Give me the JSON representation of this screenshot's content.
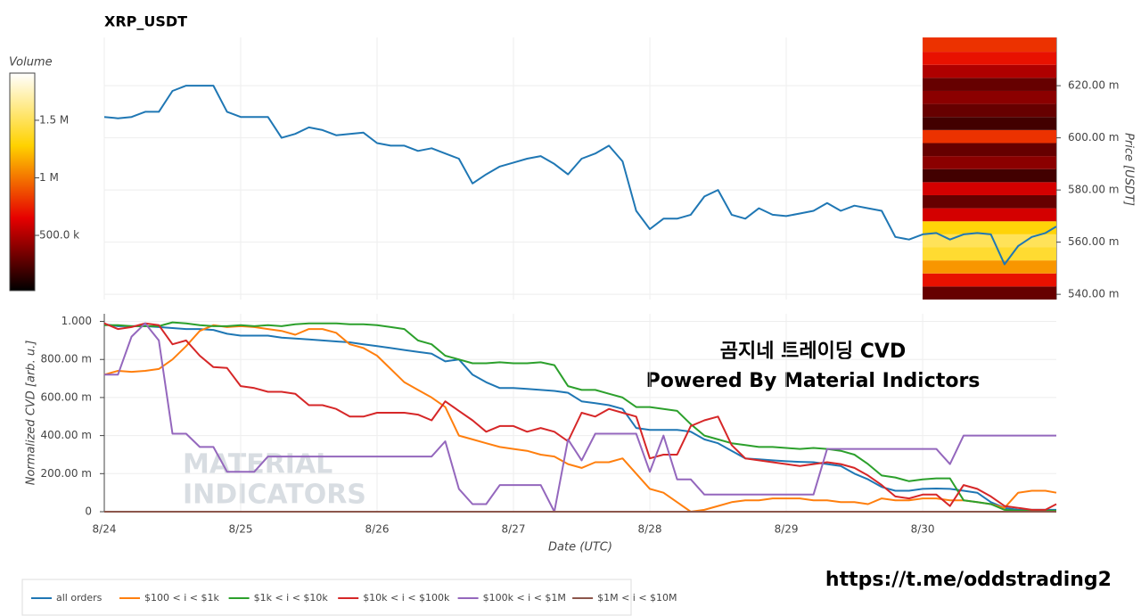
{
  "chart_data": {
    "type": "line",
    "title": "XRP_USDT",
    "xlabel": "Date (UTC)",
    "x": [
      24,
      24.1,
      24.2,
      24.3,
      24.4,
      24.5,
      24.6,
      24.7,
      24.8,
      24.9,
      25,
      25.1,
      25.2,
      25.3,
      25.4,
      25.5,
      25.6,
      25.7,
      25.8,
      25.9,
      26,
      26.1,
      26.2,
      26.3,
      26.4,
      26.5,
      26.6,
      26.7,
      26.8,
      26.9,
      27,
      27.1,
      27.2,
      27.3,
      27.4,
      27.5,
      27.6,
      27.7,
      27.8,
      27.9,
      28,
      28.1,
      28.2,
      28.3,
      28.4,
      28.5,
      28.6,
      28.7,
      28.8,
      28.9,
      29,
      29.1,
      29.2,
      29.3,
      29.4,
      29.5,
      29.6,
      29.7,
      29.8,
      29.9,
      30,
      30.1,
      30.2,
      30.3,
      30.4,
      30.5,
      30.6,
      30.7,
      30.8,
      30.9,
      30.98
    ],
    "xlim": [
      24,
      30.98
    ],
    "xticks": [
      {
        "value": 24,
        "label": "8/24"
      },
      {
        "value": 25,
        "label": "8/25"
      },
      {
        "value": 26,
        "label": "8/26"
      },
      {
        "value": 27,
        "label": "8/27"
      },
      {
        "value": 28,
        "label": "8/28"
      },
      {
        "value": 29,
        "label": "8/29"
      },
      {
        "value": 30,
        "label": "8/30"
      }
    ],
    "grid": true,
    "panels": [
      {
        "ylabel": "Price [USDT]",
        "ylim": [
          538,
          638.5
        ],
        "yticks": [
          {
            "value": 540,
            "label": "540.00 m"
          },
          {
            "value": 560,
            "label": "560.00 m"
          },
          {
            "value": 580,
            "label": "580.00 m"
          },
          {
            "value": 600,
            "label": "600.00 m"
          },
          {
            "value": 620,
            "label": "620.00 m"
          }
        ],
        "series": [
          {
            "color": "#1f77b4",
            "values": [
              608,
              607.5,
              608,
              610,
              610,
              618,
              620,
              620,
              620,
              610,
              608,
              608,
              608,
              600,
              601.5,
              604,
              603,
              601,
              601.5,
              602,
              598,
              597,
              597,
              595,
              596,
              594,
              592,
              582.5,
              586,
              589,
              590.5,
              592,
              593,
              590,
              586,
              592,
              594,
              597,
              591,
              572,
              565,
              569,
              569,
              570.5,
              577.5,
              580,
              570.5,
              569,
              573,
              570.5,
              570,
              571,
              572,
              575,
              572,
              574,
              573,
              572,
              562,
              561,
              563,
              563.5,
              561,
              563,
              563.5,
              563,
              551.5,
              558.5,
              562,
              563.5,
              566
            ]
          }
        ],
        "heatmap": {
          "xrange": [
            30,
            30.98
          ],
          "bins": [
            538,
            543,
            548,
            553,
            558,
            563,
            568,
            573,
            578,
            583,
            588,
            593,
            598,
            603,
            608,
            613,
            618,
            623,
            628,
            633,
            638.5
          ],
          "volume": [
            300000,
            700000,
            1100000,
            1400000,
            1500000,
            1300000,
            600000,
            300000,
            600000,
            200000,
            400000,
            300000,
            800000,
            200000,
            300000,
            400000,
            300000,
            500000,
            700000,
            800000
          ],
          "colorscale": [
            "#000000",
            "#e60000",
            "#ffd200",
            "#ffffff"
          ],
          "colorbar": {
            "title": "Volume",
            "clim": [
              20000,
              1910000
            ],
            "ticks": [
              {
                "value": 500000,
                "label": "500.0 k"
              },
              {
                "value": 1000000,
                "label": "1 M"
              },
              {
                "value": 1500000,
                "label": "1.5 M"
              }
            ]
          }
        }
      },
      {
        "ylabel": "Normalized CVD [arb. u.]",
        "ylim": [
          0,
          1040
        ],
        "yticks": [
          0,
          {
            "value": 200,
            "label": "200.00 m"
          },
          {
            "value": 400,
            "label": "400.00 m"
          },
          {
            "value": 600,
            "label": "600.00 m"
          },
          {
            "value": 800,
            "label": "800.00 m"
          },
          {
            "value": 1000,
            "label": "1.000"
          }
        ],
        "series": [
          {
            "name": "all orders",
            "color": "#1f77b4",
            "values": [
              985,
              975,
              975,
              975,
              970,
              965,
              960,
              960,
              955,
              935,
              925,
              925,
              925,
              915,
              910,
              905,
              900,
              895,
              890,
              880,
              870,
              860,
              850,
              840,
              830,
              790,
              800,
              720,
              680,
              650,
              650,
              645,
              640,
              635,
              625,
              580,
              570,
              560,
              540,
              440,
              430,
              430,
              430,
              420,
              380,
              360,
              320,
              280,
              275,
              270,
              265,
              262,
              260,
              250,
              240,
              200,
              170,
              130,
              110,
              110,
              120,
              122,
              120,
              110,
              100,
              50,
              20,
              10,
              10,
              10,
              10
            ]
          },
          {
            "name": "$100 < i < $1k",
            "color": "#ff7f0e",
            "values": [
              720,
              740,
              735,
              740,
              750,
              800,
              870,
              950,
              980,
              970,
              975,
              970,
              960,
              950,
              930,
              960,
              960,
              940,
              880,
              860,
              820,
              750,
              680,
              640,
              600,
              550,
              400,
              380,
              360,
              340,
              330,
              320,
              300,
              290,
              250,
              230,
              260,
              260,
              280,
              200,
              120,
              100,
              50,
              0,
              10,
              30,
              50,
              60,
              60,
              70,
              70,
              70,
              60,
              60,
              50,
              50,
              40,
              70,
              60,
              60,
              70,
              70,
              60,
              60,
              50,
              40,
              20,
              100,
              110,
              110,
              100
            ]
          },
          {
            "name": "$1k < i < $10k",
            "color": "#2ca02c",
            "values": [
              980,
              980,
              975,
              975,
              975,
              995,
              990,
              980,
              975,
              975,
              980,
              975,
              980,
              975,
              985,
              990,
              990,
              990,
              985,
              985,
              980,
              970,
              960,
              900,
              880,
              820,
              800,
              780,
              780,
              785,
              780,
              780,
              785,
              770,
              660,
              640,
              640,
              620,
              600,
              550,
              550,
              540,
              530,
              460,
              400,
              380,
              360,
              350,
              340,
              340,
              335,
              330,
              335,
              330,
              320,
              300,
              250,
              190,
              180,
              160,
              170,
              175,
              175,
              60,
              50,
              40,
              10,
              5,
              5,
              5,
              5
            ]
          },
          {
            "name": "$10k < i < $100k",
            "color": "#d62728",
            "values": [
              990,
              960,
              970,
              990,
              980,
              880,
              900,
              820,
              760,
              755,
              660,
              650,
              630,
              630,
              620,
              560,
              560,
              540,
              500,
              500,
              520,
              520,
              520,
              510,
              480,
              580,
              530,
              480,
              420,
              450,
              450,
              420,
              440,
              420,
              370,
              520,
              500,
              540,
              520,
              500,
              280,
              300,
              300,
              450,
              480,
              500,
              350,
              280,
              270,
              260,
              250,
              240,
              250,
              260,
              250,
              230,
              190,
              140,
              80,
              70,
              90,
              90,
              30,
              140,
              120,
              80,
              30,
              20,
              10,
              10,
              40
            ]
          },
          {
            "name": "$100k < i < $1M",
            "color": "#9467bd",
            "values": [
              720,
              720,
              920,
              990,
              900,
              410,
              410,
              340,
              340,
              210,
              210,
              210,
              290,
              290,
              290,
              290,
              290,
              290,
              290,
              290,
              290,
              290,
              290,
              290,
              290,
              370,
              120,
              40,
              40,
              140,
              140,
              140,
              140,
              0,
              380,
              270,
              410,
              410,
              410,
              410,
              210,
              400,
              170,
              170,
              90,
              90,
              90,
              90,
              90,
              90,
              90,
              90,
              90,
              330,
              330,
              330,
              330,
              330,
              330,
              330,
              330,
              330,
              250,
              400,
              400,
              400,
              400,
              400,
              400,
              400,
              400
            ]
          },
          {
            "name": "$1M < i < $10M",
            "color": "#8c564b",
            "values": [
              0,
              0,
              0,
              0,
              0,
              0,
              0,
              0,
              0,
              0,
              0,
              0,
              0,
              0,
              0,
              0,
              0,
              0,
              0,
              0,
              0,
              0,
              0,
              0,
              0,
              0,
              0,
              0,
              0,
              0,
              0,
              0,
              0,
              0,
              0,
              0,
              0,
              0,
              0,
              0,
              0,
              0,
              0,
              0,
              0,
              0,
              0,
              0,
              0,
              0,
              0,
              0,
              0,
              0,
              0,
              0,
              0,
              0,
              0,
              0,
              0,
              0,
              0,
              0,
              0,
              0,
              0,
              0,
              0,
              0,
              0
            ]
          }
        ]
      }
    ],
    "annotations": [
      "곰지네 트레이딩 CVD",
      "Powered By Material Indictors"
    ],
    "watermark": [
      "MATERIAL",
      "INDICATORS"
    ],
    "footer": "https://t.me/oddstrading2"
  }
}
